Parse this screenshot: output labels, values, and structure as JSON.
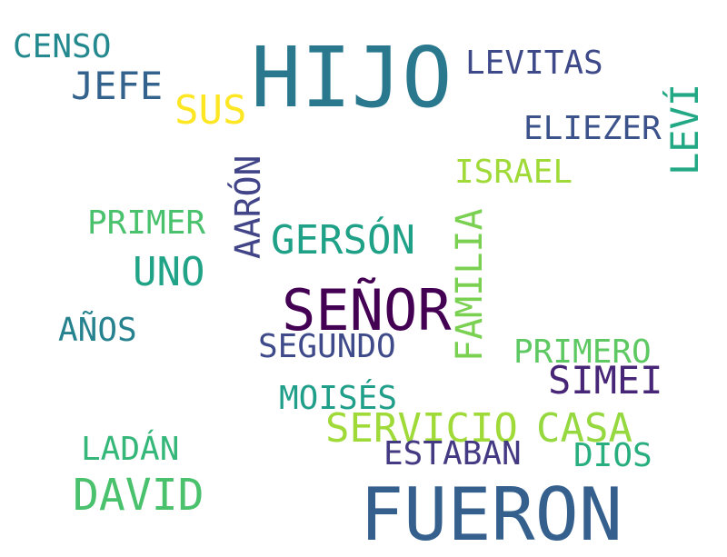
{
  "words": {
    "hijo": {
      "text": "HIJO",
      "color": "#2a788e"
    },
    "fueron": {
      "text": "FUERON",
      "color": "#355f8d"
    },
    "senor": {
      "text": "SEÑOR",
      "color": "#440154"
    },
    "sus": {
      "text": "SUS",
      "color": "#fde725"
    },
    "levitas": {
      "text": "LEVITAS",
      "color": "#3e4989"
    },
    "censo": {
      "text": "CENSO",
      "color": "#23898e"
    },
    "jefe": {
      "text": "JEFE",
      "color": "#33638d"
    },
    "eliezer": {
      "text": "ELIEZER",
      "color": "#3b528b"
    },
    "levi": {
      "text": "LEVÍ",
      "color": "#22a884"
    },
    "israel": {
      "text": "ISRAEL",
      "color": "#a0da39"
    },
    "aaron": {
      "text": "AARÓN",
      "color": "#414487"
    },
    "primer": {
      "text": "PRIMER",
      "color": "#4ac16d"
    },
    "gerson": {
      "text": "GERSÓN",
      "color": "#1fa187"
    },
    "uno": {
      "text": "UNO",
      "color": "#20a386"
    },
    "familia": {
      "text": "FAMILIA",
      "color": "#7ad151"
    },
    "anos": {
      "text": "AÑOS",
      "color": "#26828e"
    },
    "segundo": {
      "text": "SEGUNDO",
      "color": "#3e4a89"
    },
    "primero": {
      "text": "PRIMERO",
      "color": "#5ec962"
    },
    "simei": {
      "text": "SIMEI",
      "color": "#482677"
    },
    "moises": {
      "text": "MOISÉS",
      "color": "#1f9e89"
    },
    "servicio": {
      "text": "SERVICIO",
      "color": "#a0da39"
    },
    "casa": {
      "text": "CASA",
      "color": "#95d840"
    },
    "ladan": {
      "text": "LADÁN",
      "color": "#35b779"
    },
    "estaban": {
      "text": "ESTABAN",
      "color": "#443983"
    },
    "dios": {
      "text": "DIOS",
      "color": "#29af7f"
    },
    "david": {
      "text": "DAVID",
      "color": "#4ac16d"
    }
  }
}
